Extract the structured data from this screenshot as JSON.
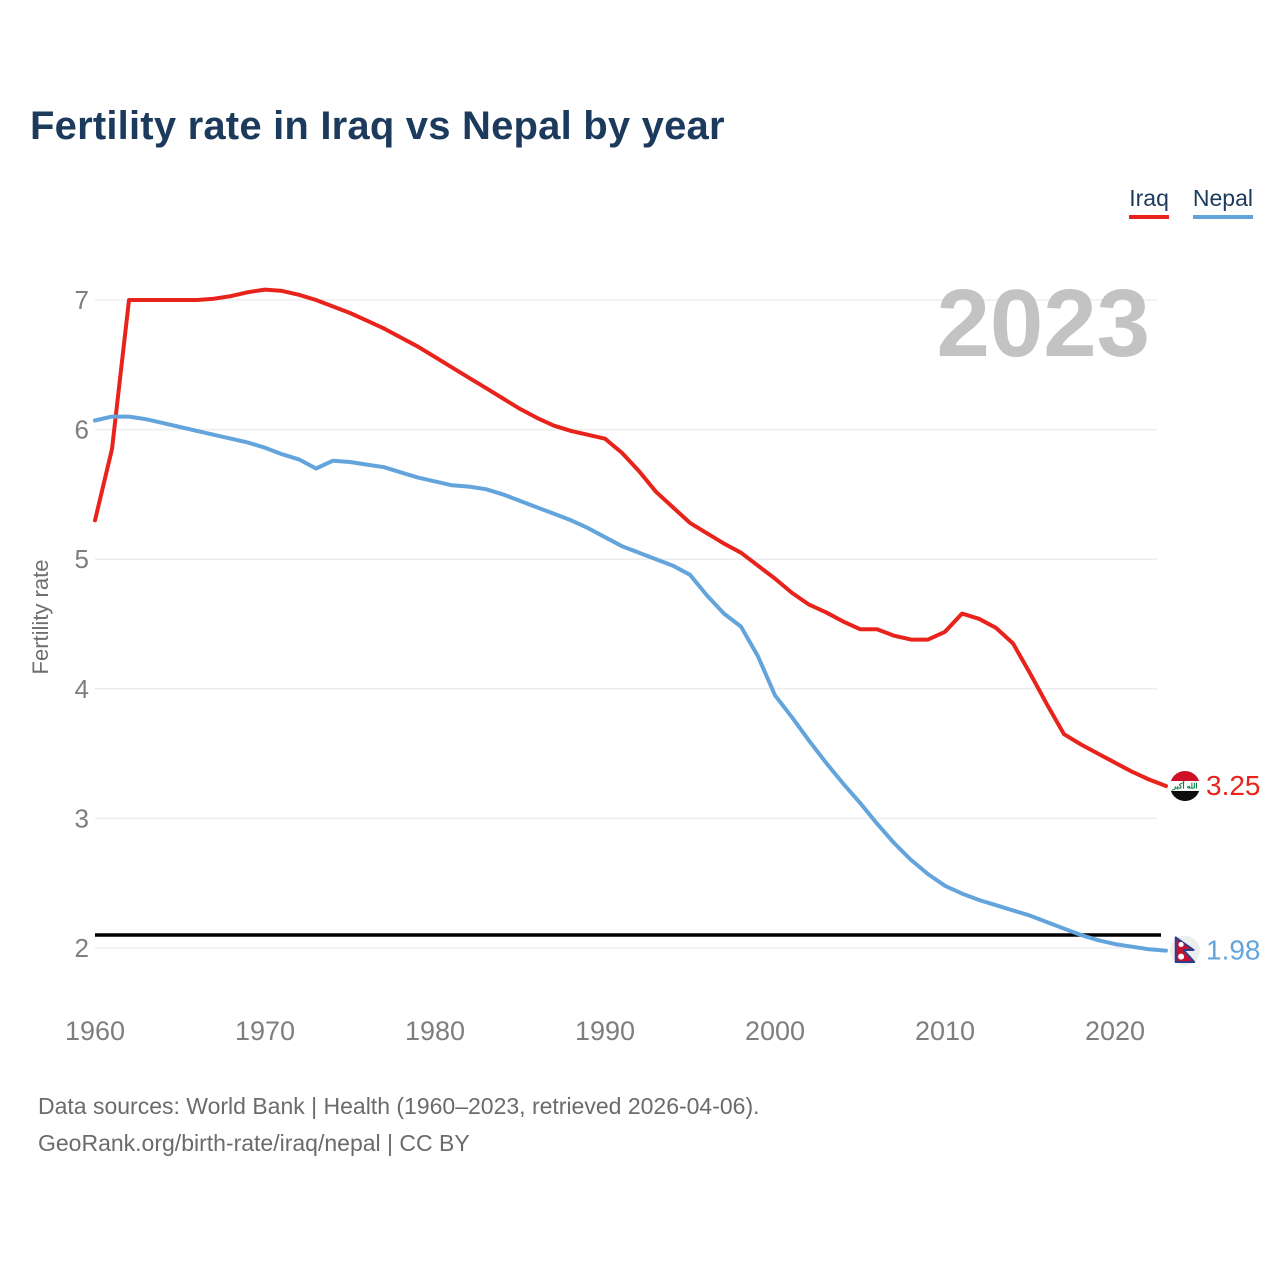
{
  "header": {
    "title": "Fertility rate in Iraq vs Nepal by year"
  },
  "legend": {
    "items": [
      {
        "label": "Iraq",
        "color": "#e8231c"
      },
      {
        "label": "Nepal",
        "color": "#64a4dc"
      }
    ]
  },
  "watermark": {
    "text": "2023"
  },
  "footer": {
    "line1": "Data sources: World Bank | Health (1960–2023, retrieved 2026-04-06).",
    "line2": "GeoRank.org/birth-rate/iraq/nepal | CC BY"
  },
  "chart_data": {
    "type": "line",
    "title": "Fertility rate in Iraq vs Nepal by year",
    "xlabel": "",
    "ylabel": "Fertility rate",
    "x_range": [
      1960,
      2023
    ],
    "x_step": 1,
    "x_ticks": [
      1960,
      1970,
      1980,
      1990,
      2000,
      2010,
      2020
    ],
    "y_ticks": [
      2,
      3,
      4,
      5,
      6,
      7
    ],
    "ylim": [
      1.7,
      7.35
    ],
    "grid": "horizontal",
    "legend_position": "top-right",
    "watermark": "2023",
    "reference_line": {
      "value": 2.1,
      "color": "#000000"
    },
    "series": [
      {
        "name": "Iraq",
        "color": "#e8231c",
        "end_label": "3.25",
        "flag": "iraq",
        "values": [
          5.3,
          5.85,
          7.0,
          7.0,
          7.0,
          7.0,
          7.0,
          7.01,
          7.03,
          7.06,
          7.08,
          7.07,
          7.04,
          7.0,
          6.95,
          6.9,
          6.84,
          6.78,
          6.71,
          6.64,
          6.56,
          6.48,
          6.4,
          6.32,
          6.24,
          6.16,
          6.09,
          6.03,
          5.99,
          5.96,
          5.93,
          5.82,
          5.68,
          5.52,
          5.4,
          5.28,
          5.2,
          5.12,
          5.05,
          4.95,
          4.85,
          4.74,
          4.65,
          4.59,
          4.52,
          4.46,
          4.46,
          4.41,
          4.38,
          4.38,
          4.44,
          4.58,
          4.54,
          4.47,
          4.35,
          4.12,
          3.88,
          3.65,
          3.57,
          3.5,
          3.43,
          3.36,
          3.3,
          3.25
        ]
      },
      {
        "name": "Nepal",
        "color": "#64a4dc",
        "end_label": "1.98",
        "flag": "nepal",
        "values": [
          6.07,
          6.1,
          6.1,
          6.08,
          6.05,
          6.02,
          5.99,
          5.96,
          5.93,
          5.9,
          5.86,
          5.81,
          5.77,
          5.7,
          5.76,
          5.75,
          5.73,
          5.71,
          5.67,
          5.63,
          5.6,
          5.57,
          5.56,
          5.54,
          5.5,
          5.45,
          5.4,
          5.35,
          5.3,
          5.24,
          5.17,
          5.1,
          5.05,
          5.0,
          4.95,
          4.88,
          4.72,
          4.58,
          4.48,
          4.25,
          3.95,
          3.78,
          3.6,
          3.43,
          3.27,
          3.12,
          2.96,
          2.81,
          2.68,
          2.57,
          2.48,
          2.42,
          2.37,
          2.33,
          2.29,
          2.25,
          2.2,
          2.15,
          2.1,
          2.06,
          2.03,
          2.01,
          1.99,
          1.98
        ]
      }
    ]
  },
  "colors": {
    "title": "#1c3a5c",
    "tick_label": "#7e7e7e",
    "axis_label": "#6f6f6f",
    "watermark": "#c3c3c3",
    "gridline": "#ededed",
    "footer": "#6b6b6b"
  }
}
